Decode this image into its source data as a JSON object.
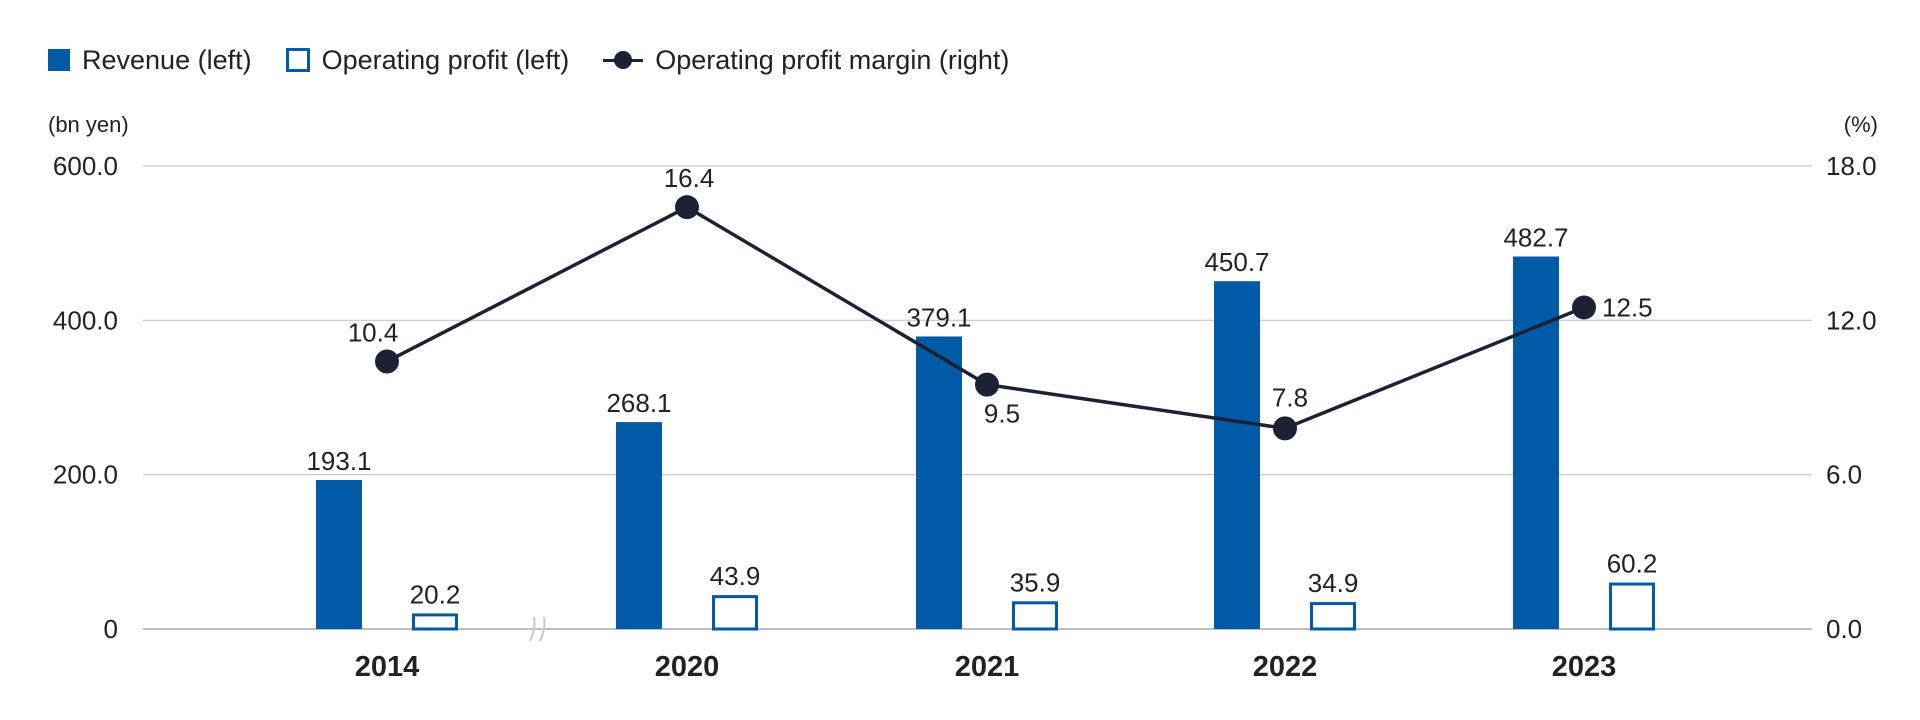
{
  "legend": {
    "revenue": "Revenue (left)",
    "operating_profit": "Operating profit (left)",
    "margin": "Operating profit margin (right)"
  },
  "colors": {
    "revenue": "#005aa5",
    "operating_profit": "#005aa5",
    "margin_line": "#1c2233",
    "grid": "#cfcfcf",
    "axis_break": "#c8c8c8"
  },
  "chart_data": {
    "type": "bar",
    "categories": [
      "2014",
      "2020",
      "2021",
      "2022",
      "2023"
    ],
    "series": [
      {
        "name": "Revenue (left)",
        "kind": "bar",
        "style": "solid",
        "axis": "left",
        "values": [
          193.1,
          268.1,
          379.1,
          450.7,
          482.7
        ],
        "labels": [
          "193.1",
          "268.1",
          "379.1",
          "450.7",
          "482.7"
        ]
      },
      {
        "name": "Operating profit (left)",
        "kind": "bar",
        "style": "hollow",
        "axis": "left",
        "values": [
          20.2,
          43.9,
          35.9,
          34.9,
          60.2
        ],
        "labels": [
          "20.2",
          "43.9",
          "35.9",
          "34.9",
          "60.2"
        ]
      },
      {
        "name": "Operating profit margin (right)",
        "kind": "line",
        "axis": "right",
        "values": [
          10.4,
          16.4,
          9.5,
          7.8,
          12.5
        ],
        "labels": [
          "10.4",
          "16.4",
          "9.5",
          "7.8",
          "12.5"
        ]
      }
    ],
    "left_axis": {
      "label": "(bn yen)",
      "range": [
        0,
        600
      ],
      "ticks": [
        0,
        200,
        400,
        600
      ],
      "tick_labels": [
        "0",
        "200.0",
        "400.0",
        "600.0"
      ]
    },
    "right_axis": {
      "label": "(%)",
      "range": [
        0,
        18
      ],
      "ticks": [
        0,
        6,
        12,
        18
      ],
      "tick_labels": [
        "0.0",
        "6.0",
        "12.0",
        "18.0"
      ]
    },
    "axis_break_between": [
      "2014",
      "2020"
    ],
    "grid": true,
    "legend_position": "top-left"
  }
}
